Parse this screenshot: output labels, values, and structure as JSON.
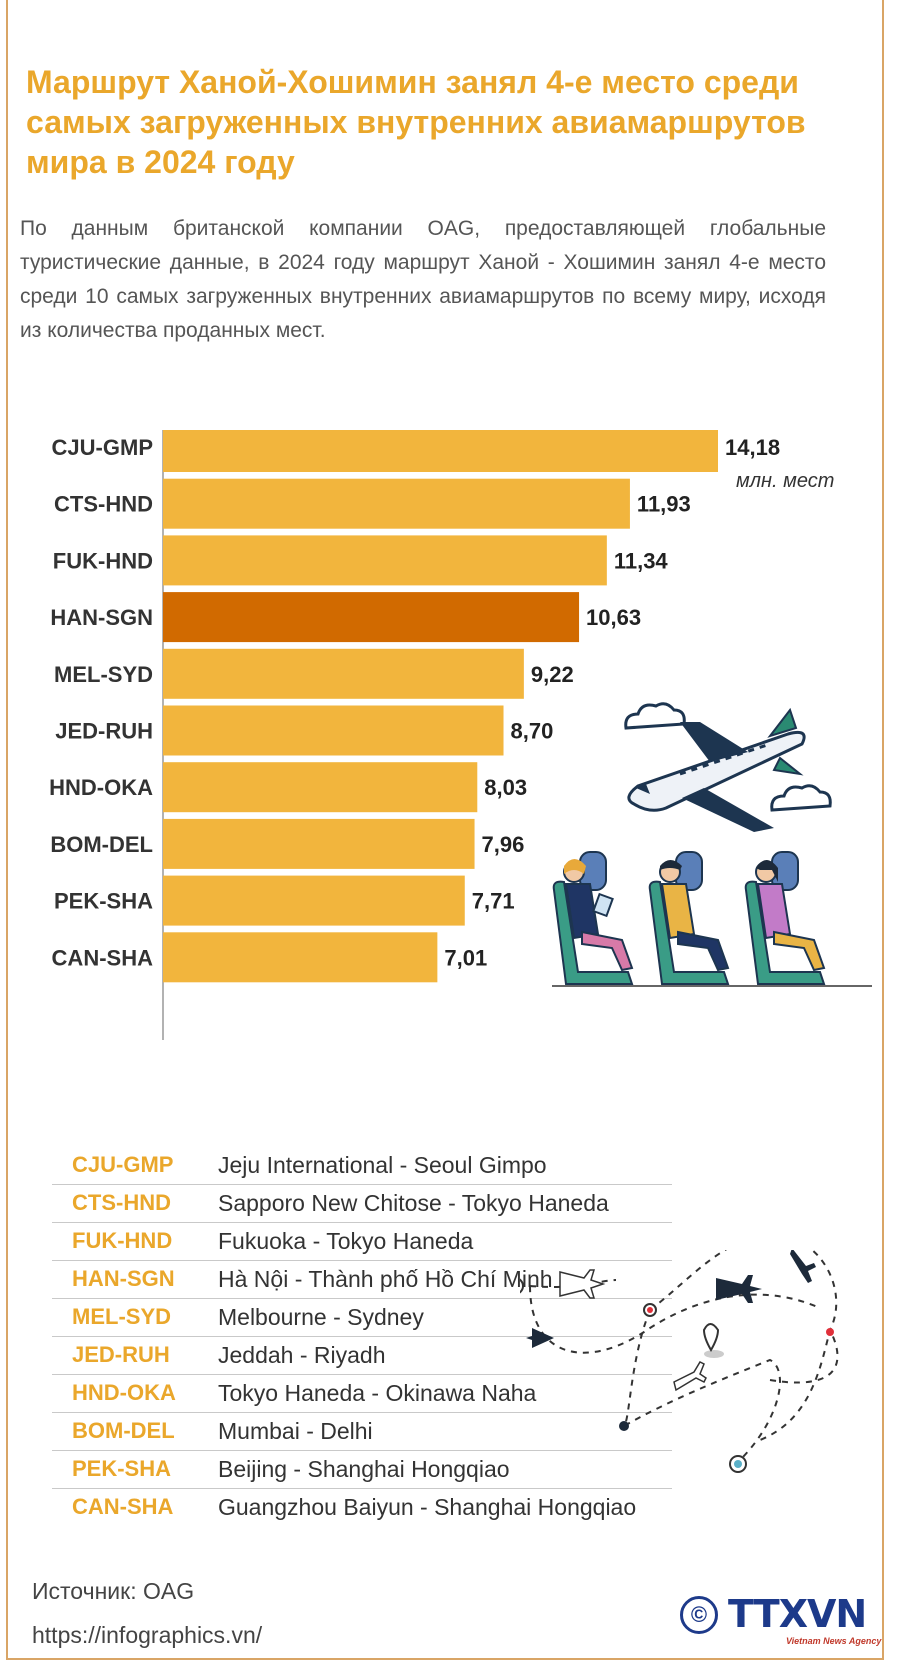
{
  "title": "Маршрут Ханой-Хошимин занял 4-е место среди\nсамых загруженных внутренних авиамаршрутов\nмира в 2024 году",
  "intro": "По данным британской компании OAG, предоставляющей глобальные туристические данные, в 2024 году маршрут Ханой - Хошимин занял 4-е место среди 10 самых загруженных внутренних авиамаршрутов по всему миру, исходя из количества проданных мест.",
  "colors": {
    "bar": "#f2b53d",
    "highlight": "#d16a00",
    "title": "#eaa72b"
  },
  "chart_data": {
    "type": "bar",
    "orientation": "horizontal",
    "categories": [
      "CJU-GMP",
      "CTS-HND",
      "FUK-HND",
      "HAN-SGN",
      "MEL-SYD",
      "JED-RUH",
      "HND-OKA",
      "BOM-DEL",
      "PEK-SHA",
      "CAN-SHA"
    ],
    "values": [
      14.18,
      11.93,
      11.34,
      10.63,
      9.22,
      8.7,
      8.03,
      7.96,
      7.71,
      7.01
    ],
    "value_labels": [
      "14,18",
      "11,93",
      "11,34",
      "10,63",
      "9,22",
      "8,70",
      "8,03",
      "7,96",
      "7,71",
      "7,01"
    ],
    "highlight": "HAN-SGN",
    "unit": "млн. мест",
    "xlim": [
      0,
      14.18
    ],
    "grid": false
  },
  "legend": [
    {
      "code": "CJU-GMP",
      "name": "Jeju International - Seoul Gimpo"
    },
    {
      "code": "CTS-HND",
      "name": "Sapporo New Chitose - Tokyo Haneda"
    },
    {
      "code": "FUK-HND",
      "name": "Fukuoka - Tokyo Haneda"
    },
    {
      "code": "HAN-SGN",
      "name": "Hà Nội - Thành phố Hồ Chí Minh"
    },
    {
      "code": "MEL-SYD",
      "name": "Melbourne - Sydney"
    },
    {
      "code": "JED-RUH",
      "name": "Jeddah - Riyadh"
    },
    {
      "code": "HND-OKA",
      "name": "Tokyo Haneda - Okinawa Naha"
    },
    {
      "code": "BOM-DEL",
      "name": "Mumbai - Delhi"
    },
    {
      "code": "PEK-SHA",
      "name": "Beijing - Shanghai Hongqiao"
    },
    {
      "code": "CAN-SHA",
      "name": "Guangzhou Baiyun - Shanghai Hongqiao"
    }
  ],
  "source": "Источник: OAG",
  "url": "https://infographics.vn/",
  "logo": {
    "copyright": "©",
    "name": "TTXVN",
    "subtitle": "Vietnam News Agency"
  },
  "icons": [
    "airplane-icon",
    "cloud-icon",
    "passenger-seat-icon",
    "route-map-icon",
    "location-pin-icon"
  ]
}
